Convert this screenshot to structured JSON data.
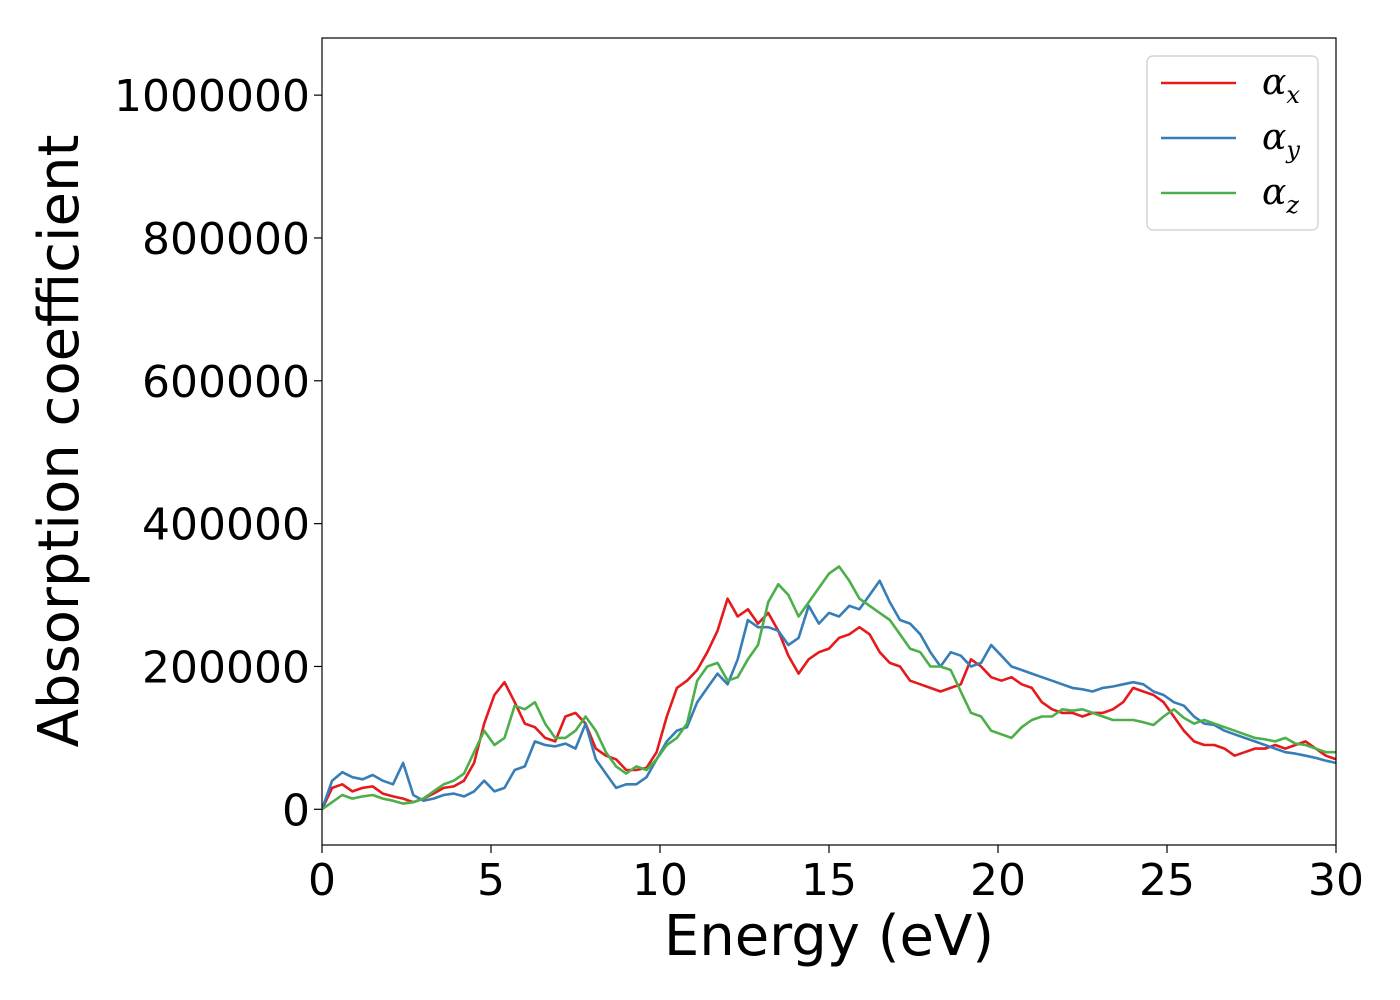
{
  "chart_data": {
    "type": "line",
    "xlabel": "Energy (eV)",
    "ylabel": "Absorption coefficient",
    "xlim": [
      0,
      30
    ],
    "ylim": [
      -50000,
      1080000
    ],
    "xticks": [
      0,
      5,
      10,
      15,
      20,
      25,
      30
    ],
    "yticks": [
      0,
      200000,
      400000,
      600000,
      800000,
      1000000
    ],
    "grid": false,
    "legend_position": "top-right",
    "series": [
      {
        "name": "αx",
        "color": "#e41a1c",
        "x": [
          0,
          0.3,
          0.6,
          0.9,
          1.2,
          1.5,
          1.8,
          2.1,
          2.4,
          2.7,
          3.0,
          3.3,
          3.6,
          3.9,
          4.2,
          4.5,
          4.8,
          5.1,
          5.4,
          5.7,
          6.0,
          6.3,
          6.6,
          6.9,
          7.2,
          7.5,
          7.8,
          8.1,
          8.4,
          8.7,
          9.0,
          9.3,
          9.6,
          9.9,
          10.2,
          10.5,
          10.8,
          11.1,
          11.4,
          11.7,
          12.0,
          12.3,
          12.6,
          12.9,
          13.2,
          13.5,
          13.8,
          14.1,
          14.4,
          14.7,
          15.0,
          15.3,
          15.6,
          15.9,
          16.2,
          16.5,
          16.8,
          17.1,
          17.4,
          17.7,
          18.0,
          18.3,
          18.6,
          18.9,
          19.2,
          19.5,
          19.8,
          20.1,
          20.4,
          20.7,
          21.0,
          21.3,
          21.6,
          21.9,
          22.2,
          22.5,
          22.8,
          23.1,
          23.4,
          23.7,
          24.0,
          24.3,
          24.6,
          24.9,
          25.2,
          25.5,
          25.8,
          26.1,
          26.4,
          26.7,
          27.0,
          27.3,
          27.6,
          27.9,
          28.2,
          28.5,
          28.8,
          29.1,
          29.4,
          29.7,
          30.0
        ],
        "values": [
          0,
          30000,
          35000,
          25000,
          30000,
          32000,
          22000,
          18000,
          15000,
          10000,
          15000,
          22000,
          30000,
          32000,
          40000,
          65000,
          120000,
          160000,
          178000,
          150000,
          120000,
          115000,
          100000,
          95000,
          130000,
          135000,
          120000,
          85000,
          75000,
          70000,
          55000,
          55000,
          58000,
          80000,
          130000,
          170000,
          180000,
          195000,
          220000,
          250000,
          295000,
          270000,
          280000,
          260000,
          275000,
          250000,
          215000,
          190000,
          210000,
          220000,
          225000,
          240000,
          245000,
          255000,
          245000,
          220000,
          205000,
          200000,
          180000,
          175000,
          170000,
          165000,
          170000,
          175000,
          210000,
          200000,
          185000,
          180000,
          185000,
          175000,
          170000,
          150000,
          140000,
          135000,
          135000,
          130000,
          135000,
          135000,
          140000,
          150000,
          170000,
          165000,
          160000,
          150000,
          130000,
          110000,
          95000,
          90000,
          90000,
          85000,
          75000,
          80000,
          85000,
          85000,
          90000,
          85000,
          90000,
          95000,
          85000,
          75000,
          70000
        ]
      },
      {
        "name": "αy",
        "color": "#377eb8",
        "x": [
          0,
          0.3,
          0.6,
          0.9,
          1.2,
          1.5,
          1.8,
          2.1,
          2.4,
          2.7,
          3.0,
          3.3,
          3.6,
          3.9,
          4.2,
          4.5,
          4.8,
          5.1,
          5.4,
          5.7,
          6.0,
          6.3,
          6.6,
          6.9,
          7.2,
          7.5,
          7.8,
          8.1,
          8.4,
          8.7,
          9.0,
          9.3,
          9.6,
          9.9,
          10.2,
          10.5,
          10.8,
          11.1,
          11.4,
          11.7,
          12.0,
          12.3,
          12.6,
          12.9,
          13.2,
          13.5,
          13.8,
          14.1,
          14.4,
          14.7,
          15.0,
          15.3,
          15.6,
          15.9,
          16.2,
          16.5,
          16.8,
          17.1,
          17.4,
          17.7,
          18.0,
          18.3,
          18.6,
          18.9,
          19.2,
          19.5,
          19.8,
          20.1,
          20.4,
          20.7,
          21.0,
          21.3,
          21.6,
          21.9,
          22.2,
          22.5,
          22.8,
          23.1,
          23.4,
          23.7,
          24.0,
          24.3,
          24.6,
          24.9,
          25.2,
          25.5,
          25.8,
          26.1,
          26.4,
          26.7,
          27.0,
          27.3,
          27.6,
          27.9,
          28.2,
          28.5,
          28.8,
          29.1,
          29.4,
          29.7,
          30.0
        ],
        "values": [
          0,
          40000,
          52000,
          45000,
          42000,
          48000,
          40000,
          35000,
          65000,
          20000,
          12000,
          15000,
          20000,
          22000,
          18000,
          25000,
          40000,
          25000,
          30000,
          55000,
          60000,
          95000,
          90000,
          88000,
          92000,
          85000,
          120000,
          70000,
          50000,
          30000,
          35000,
          35000,
          45000,
          70000,
          95000,
          110000,
          115000,
          150000,
          170000,
          190000,
          175000,
          210000,
          265000,
          255000,
          255000,
          250000,
          230000,
          240000,
          285000,
          260000,
          275000,
          270000,
          285000,
          280000,
          300000,
          320000,
          290000,
          265000,
          260000,
          245000,
          220000,
          200000,
          220000,
          215000,
          200000,
          205000,
          230000,
          215000,
          200000,
          195000,
          190000,
          185000,
          180000,
          175000,
          170000,
          168000,
          165000,
          170000,
          172000,
          175000,
          178000,
          175000,
          165000,
          160000,
          150000,
          145000,
          130000,
          120000,
          118000,
          110000,
          105000,
          100000,
          95000,
          90000,
          85000,
          80000,
          78000,
          75000,
          72000,
          68000,
          65000
        ]
      },
      {
        "name": "αz",
        "color": "#4daf4a",
        "x": [
          0,
          0.3,
          0.6,
          0.9,
          1.2,
          1.5,
          1.8,
          2.1,
          2.4,
          2.7,
          3.0,
          3.3,
          3.6,
          3.9,
          4.2,
          4.5,
          4.8,
          5.1,
          5.4,
          5.7,
          6.0,
          6.3,
          6.6,
          6.9,
          7.2,
          7.5,
          7.8,
          8.1,
          8.4,
          8.7,
          9.0,
          9.3,
          9.6,
          9.9,
          10.2,
          10.5,
          10.8,
          11.1,
          11.4,
          11.7,
          12.0,
          12.3,
          12.6,
          12.9,
          13.2,
          13.5,
          13.8,
          14.1,
          14.4,
          14.7,
          15.0,
          15.3,
          15.6,
          15.9,
          16.2,
          16.5,
          16.8,
          17.1,
          17.4,
          17.7,
          18.0,
          18.3,
          18.6,
          18.9,
          19.2,
          19.5,
          19.8,
          20.1,
          20.4,
          20.7,
          21.0,
          21.3,
          21.6,
          21.9,
          22.2,
          22.5,
          22.8,
          23.1,
          23.4,
          23.7,
          24.0,
          24.3,
          24.6,
          24.9,
          25.2,
          25.5,
          25.8,
          26.1,
          26.4,
          26.7,
          27.0,
          27.3,
          27.6,
          27.9,
          28.2,
          28.5,
          28.8,
          29.1,
          29.4,
          29.7,
          30.0
        ],
        "values": [
          0,
          10000,
          20000,
          15000,
          18000,
          20000,
          15000,
          12000,
          8000,
          10000,
          15000,
          25000,
          35000,
          40000,
          50000,
          80000,
          110000,
          90000,
          100000,
          145000,
          140000,
          150000,
          120000,
          100000,
          100000,
          110000,
          130000,
          110000,
          80000,
          60000,
          50000,
          60000,
          55000,
          70000,
          90000,
          100000,
          120000,
          180000,
          200000,
          205000,
          180000,
          185000,
          210000,
          230000,
          290000,
          315000,
          300000,
          270000,
          290000,
          310000,
          330000,
          340000,
          320000,
          295000,
          285000,
          275000,
          265000,
          245000,
          225000,
          220000,
          200000,
          200000,
          195000,
          165000,
          135000,
          130000,
          110000,
          105000,
          100000,
          115000,
          125000,
          130000,
          130000,
          140000,
          138000,
          140000,
          135000,
          130000,
          125000,
          125000,
          125000,
          122000,
          118000,
          130000,
          140000,
          128000,
          120000,
          125000,
          120000,
          115000,
          110000,
          105000,
          100000,
          98000,
          95000,
          100000,
          92000,
          90000,
          85000,
          80000,
          80000
        ]
      }
    ]
  }
}
